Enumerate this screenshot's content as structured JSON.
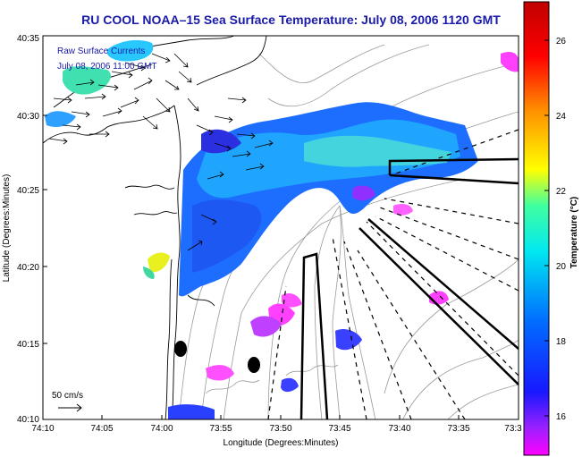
{
  "title": "RU COOL  NOAA–15  Sea Surface Temperature:  July 08, 2006 1120 GMT",
  "legend": {
    "line1": "Raw Surface Currents",
    "line2": "July 08, 2006 11:00 GMT"
  },
  "scale": {
    "label": "50 cm/s"
  },
  "axes": {
    "xlabel": "Longitude (Degrees:Minutes)",
    "ylabel": "Latitude (Degrees:Minutes)",
    "xticks": [
      "74:10",
      "74:05",
      "74:00",
      "73:55",
      "73:50",
      "73:45",
      "73:40",
      "73:35",
      "73:3"
    ],
    "yticks": [
      "40:35",
      "40:30",
      "40:25",
      "40:20",
      "40:15",
      "40:10"
    ]
  },
  "colorbar": {
    "label": "Temperature (°C)",
    "ticks": [
      "26",
      "24",
      "22",
      "20",
      "18",
      "16"
    ],
    "colors": [
      "#ff00ff",
      "#7f00ff",
      "#0000ff",
      "#0080ff",
      "#00ffff",
      "#80ff80",
      "#ffff00",
      "#ff8000",
      "#ff0000",
      "#c00000"
    ]
  }
}
